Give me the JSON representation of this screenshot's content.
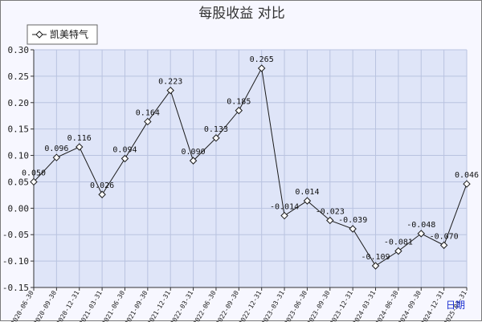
{
  "chart_data": {
    "type": "line",
    "title": "每股收益  对比",
    "xlabel": "日期",
    "ylabel": "",
    "ylim": [
      -0.15,
      0.3
    ],
    "y_ticks": [
      0.3,
      0.25,
      0.2,
      0.15,
      0.1,
      0.05,
      0.0,
      -0.05,
      -0.1,
      -0.15
    ],
    "y_tick_labels": [
      "0.30",
      "0.25",
      "0.20",
      "0.15",
      "0.10",
      "0.05",
      "0.00",
      "-0.05",
      "-0.10",
      "-0.15"
    ],
    "grid": true,
    "legend_position": "top-left",
    "categories": [
      "2020-06-30",
      "2020-09-30",
      "2020-12-31",
      "2021-03-31",
      "2021-06-30",
      "2021-09-30",
      "2021-12-31",
      "2022-03-31",
      "2022-06-30",
      "2022-09-30",
      "2022-12-31",
      "2023-03-31",
      "2023-06-30",
      "2023-09-30",
      "2023-12-31",
      "2024-03-31",
      "2024-06-30",
      "2024-09-30",
      "2024-12-31",
      "2025-03-31"
    ],
    "series": [
      {
        "name": "凯美特气",
        "values": [
          0.05,
          0.096,
          0.116,
          0.026,
          0.094,
          0.164,
          0.223,
          0.09,
          0.133,
          0.185,
          0.265,
          -0.014,
          0.014,
          -0.023,
          -0.039,
          -0.109,
          -0.081,
          -0.048,
          -0.07,
          0.046
        ],
        "labels": [
          "0.050",
          "0.096",
          "0.116",
          "0.026",
          "0.094",
          "0.164",
          "0.223",
          "0.090",
          "0.133",
          "0.185",
          "0.265",
          "-0.014",
          "0.014",
          "-0.023",
          "-0.039",
          "-0.109",
          "-0.081",
          "-0.048",
          "-0.070",
          "0.046"
        ]
      }
    ]
  },
  "colors": {
    "plot_background": "#dfe5f8",
    "grid": "#b9c3e0",
    "line": "#1a1a1a",
    "axis_title": "#1a2fd0"
  }
}
